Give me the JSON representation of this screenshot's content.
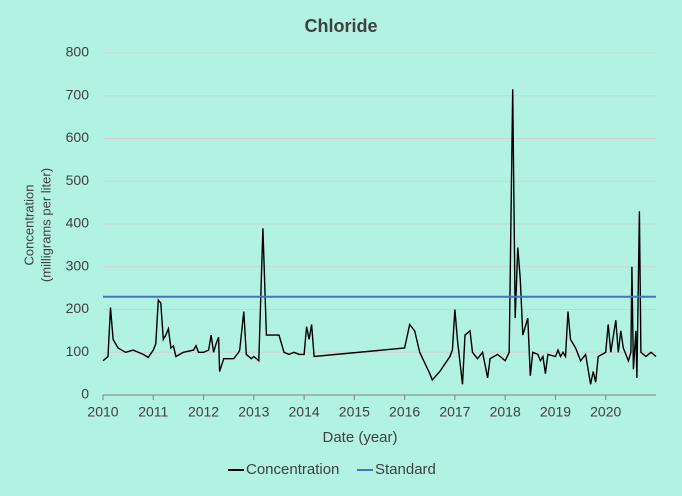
{
  "chart_data": {
    "type": "line",
    "title": "Chloride",
    "xlabel": "Date (year)",
    "ylabel": [
      "Concentration",
      "(milligrams per liter)"
    ],
    "xlim": [
      2010,
      2021
    ],
    "xticks": [
      2010,
      2011,
      2012,
      2013,
      2014,
      2015,
      2016,
      2017,
      2018,
      2019,
      2020
    ],
    "ylim": [
      0,
      800
    ],
    "yticks": [
      0,
      100,
      200,
      300,
      400,
      500,
      600,
      700,
      800
    ],
    "grid": true,
    "legend": "bottom",
    "series": [
      {
        "name": "Concentration",
        "color": "#000000",
        "x": [
          2010.0,
          2010.1,
          2010.15,
          2010.2,
          2010.3,
          2010.45,
          2010.6,
          2010.8,
          2010.9,
          2011.0,
          2011.05,
          2011.1,
          2011.15,
          2011.2,
          2011.25,
          2011.3,
          2011.35,
          2011.4,
          2011.45,
          2011.6,
          2011.8,
          2011.85,
          2011.9,
          2012.0,
          2012.1,
          2012.15,
          2012.2,
          2012.25,
          2012.3,
          2012.32,
          2012.4,
          2012.6,
          2012.7,
          2012.72,
          2012.8,
          2012.85,
          2012.95,
          2013.0,
          2013.1,
          2013.18,
          2013.25,
          2013.5,
          2013.6,
          2013.7,
          2013.8,
          2013.9,
          2014.0,
          2014.05,
          2014.1,
          2014.15,
          2014.2,
          2016.0,
          2016.1,
          2016.2,
          2016.3,
          2016.5,
          2016.55,
          2016.7,
          2016.9,
          2016.95,
          2017.0,
          2017.05,
          2017.15,
          2017.2,
          2017.3,
          2017.35,
          2017.45,
          2017.55,
          2017.65,
          2017.7,
          2017.85,
          2018.0,
          2018.08,
          2018.15,
          2018.2,
          2018.25,
          2018.3,
          2018.35,
          2018.45,
          2018.5,
          2018.55,
          2018.65,
          2018.7,
          2018.75,
          2018.8,
          2018.85,
          2019.0,
          2019.05,
          2019.1,
          2019.15,
          2019.2,
          2019.25,
          2019.3,
          2019.4,
          2019.5,
          2019.6,
          2019.7,
          2019.75,
          2019.8,
          2019.85,
          2020.0,
          2020.05,
          2020.1,
          2020.2,
          2020.25,
          2020.3,
          2020.35,
          2020.45,
          2020.5,
          2020.52,
          2020.55,
          2020.6,
          2020.62,
          2020.67,
          2020.7,
          2020.8,
          2020.9,
          2021.0
        ],
        "values": [
          80,
          90,
          205,
          130,
          110,
          100,
          105,
          95,
          88,
          105,
          120,
          222,
          215,
          130,
          140,
          155,
          110,
          115,
          90,
          100,
          105,
          115,
          100,
          100,
          105,
          140,
          100,
          120,
          135,
          55,
          85,
          85,
          100,
          105,
          195,
          95,
          85,
          90,
          80,
          390,
          140,
          140,
          100,
          95,
          100,
          95,
          95,
          160,
          130,
          165,
          90,
          110,
          165,
          150,
          100,
          50,
          35,
          55,
          90,
          105,
          200,
          130,
          25,
          140,
          150,
          100,
          85,
          100,
          40,
          85,
          95,
          80,
          100,
          715,
          180,
          345,
          270,
          140,
          180,
          45,
          100,
          95,
          80,
          90,
          50,
          95,
          90,
          105,
          90,
          100,
          90,
          195,
          130,
          110,
          80,
          95,
          25,
          55,
          30,
          90,
          100,
          165,
          100,
          175,
          100,
          150,
          110,
          80,
          100,
          300,
          60,
          150,
          40,
          430,
          100,
          90,
          100,
          90
        ]
      },
      {
        "name": "Standard",
        "color": "#4472c4",
        "x": [
          2010,
          2021
        ],
        "values": [
          230,
          230
        ]
      }
    ]
  }
}
